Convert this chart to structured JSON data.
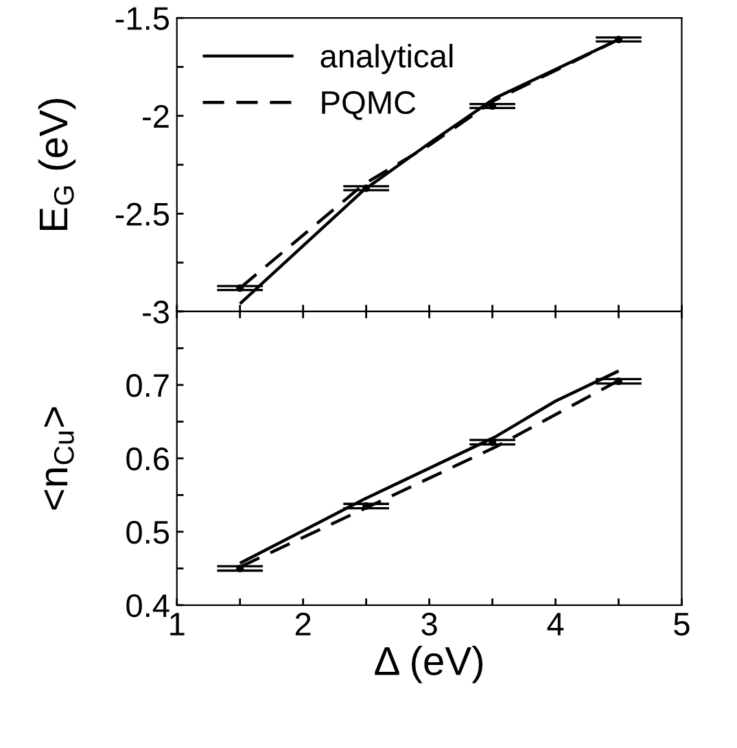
{
  "chart_data": [
    {
      "type": "line",
      "ylabel": "E$_{G}$ (eV)",
      "xlim": [
        1,
        5
      ],
      "ylim": [
        -3,
        -1.5
      ],
      "xticks": [
        1,
        {
          "value": 1.5,
          "label": null
        },
        2,
        {
          "value": 2.5,
          "label": null
        },
        3,
        {
          "value": 3.5,
          "label": null
        },
        4,
        {
          "value": 4.5,
          "label": null
        },
        5
      ],
      "yticks": [
        -3,
        {
          "value": -2.75,
          "label": null
        },
        -2.5,
        {
          "value": -2.25,
          "label": null
        },
        -2,
        {
          "value": -1.75,
          "label": null
        },
        -1.5
      ],
      "tick_labels": "y",
      "legend": "top left",
      "grid": false,
      "series": [
        {
          "name": "analytical",
          "color": "#000000",
          "line_style": "solid",
          "x": [
            1.5,
            2.48,
            3.0,
            3.52,
            4.5
          ],
          "values": [
            -2.96,
            -2.38,
            -2.14,
            -1.91,
            -1.61
          ]
        },
        {
          "name": "PQMC",
          "color": "#000000",
          "line_style": "dashed",
          "x": [
            1.5,
            2.48,
            3.0,
            3.52,
            4.5
          ],
          "values": [
            -2.88,
            -2.35,
            -2.15,
            -1.92,
            -1.61
          ]
        },
        {
          "type": "scatter",
          "color": "#000000",
          "marker": "circle",
          "x": [
            1.5,
            2.5,
            3.5,
            4.5
          ],
          "values": [
            -2.88,
            -2.37,
            -1.95,
            -1.61
          ],
          "errors": [
            0.01,
            0.01,
            0.01,
            0.01
          ]
        }
      ]
    },
    {
      "type": "line",
      "ylabel": "<n$_{Cu}$>",
      "xlabel": "Δ (eV)",
      "xlim": [
        1,
        5
      ],
      "ylim": [
        0.4,
        0.8
      ],
      "xticks": [
        1,
        {
          "value": 1.5,
          "label": null
        },
        2,
        {
          "value": 2.5,
          "label": null
        },
        3,
        {
          "value": 3.5,
          "label": null
        },
        4,
        {
          "value": 4.5,
          "label": null
        },
        5
      ],
      "yticks": [
        0.4,
        {
          "value": 0.45,
          "label": null
        },
        0.5,
        {
          "value": 0.55,
          "label": null
        },
        0.6,
        {
          "value": 0.65,
          "label": null
        },
        0.7,
        {
          "value": 0.75,
          "label": null
        },
        {
          "value": 0.8,
          "label": null
        }
      ],
      "legend": false,
      "grid": false,
      "series": [
        {
          "color": "#000000",
          "line_style": "solid",
          "x": [
            1.5,
            2.48,
            3.52,
            4.0,
            4.5
          ],
          "values": [
            0.457,
            0.544,
            0.629,
            0.678,
            0.719
          ]
        },
        {
          "color": "#000000",
          "line_style": "dashed",
          "x": [
            1.5,
            2.48,
            3.52,
            4.5
          ],
          "values": [
            0.452,
            0.531,
            0.615,
            0.706
          ]
        },
        {
          "type": "scatter",
          "color": "#000000",
          "marker": "circle",
          "x": [
            1.5,
            2.5,
            3.5,
            4.5
          ],
          "values": [
            0.45,
            0.535,
            0.622,
            0.705
          ],
          "errors": [
            0.003,
            0.003,
            0.003,
            0.003
          ]
        }
      ]
    }
  ]
}
